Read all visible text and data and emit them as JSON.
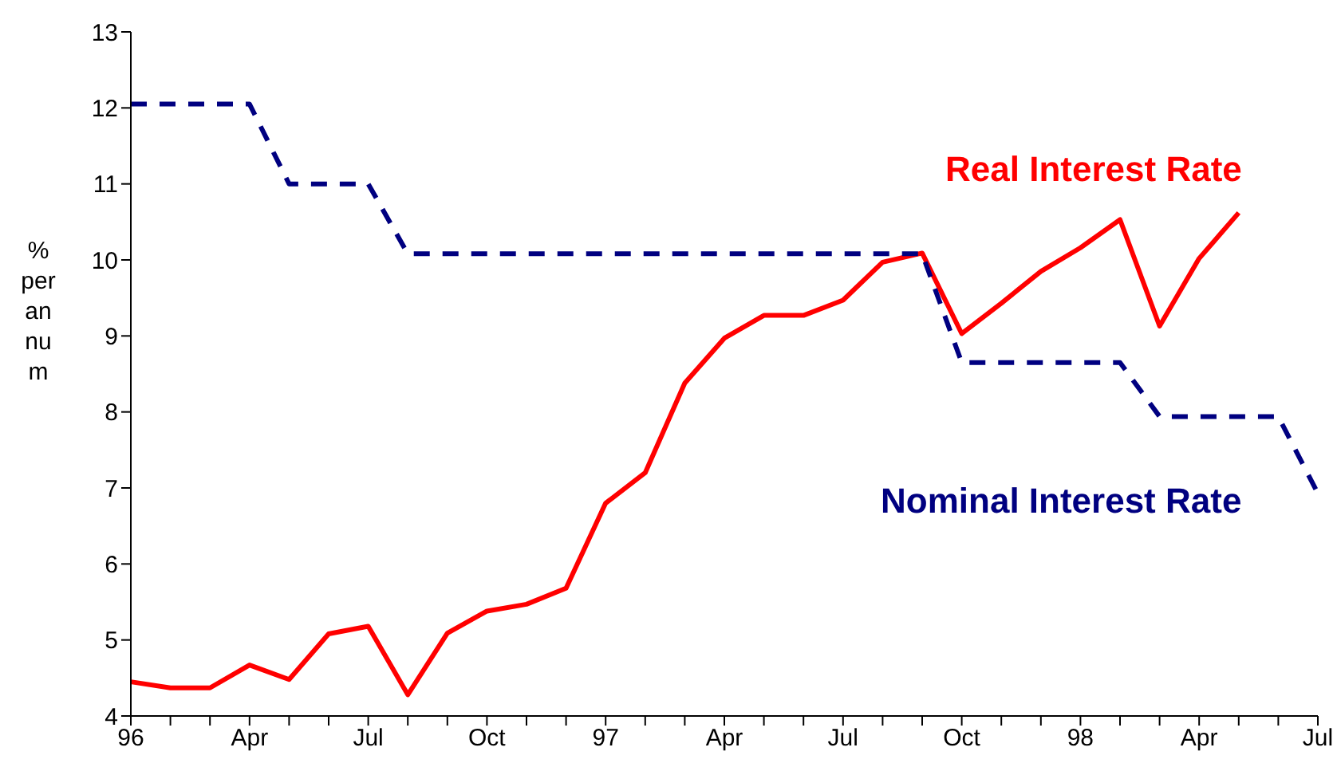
{
  "chart_data": {
    "type": "line",
    "categories": [
      "96",
      null,
      null,
      "Apr",
      null,
      null,
      "Jul",
      null,
      null,
      "Oct",
      null,
      null,
      "97",
      null,
      null,
      "Apr",
      null,
      null,
      "Jul",
      null,
      null,
      "Oct",
      null,
      null,
      "98",
      null,
      null,
      "Apr",
      null,
      null,
      "Jul"
    ],
    "series": [
      {
        "name": "Real Interest Rate",
        "color": "#ff0000",
        "line_style": "solid",
        "values": [
          4.45,
          4.37,
          4.37,
          4.67,
          4.48,
          5.08,
          5.18,
          4.28,
          5.09,
          5.38,
          5.47,
          5.68,
          6.8,
          7.2,
          8.38,
          8.97,
          9.27,
          9.27,
          9.47,
          9.97,
          10.09,
          9.03,
          9.43,
          9.85,
          10.16,
          10.53,
          9.13,
          10.02,
          10.62,
          null,
          null
        ]
      },
      {
        "name": "Nominal Interest Rate",
        "color": "#000080",
        "line_style": "dashed",
        "values": [
          12.05,
          12.05,
          12.05,
          12.05,
          11.0,
          11.0,
          11.0,
          10.08,
          10.08,
          10.08,
          10.08,
          10.08,
          10.08,
          10.08,
          10.08,
          10.08,
          10.08,
          10.08,
          10.08,
          10.08,
          10.08,
          8.65,
          8.65,
          8.65,
          8.65,
          8.65,
          7.94,
          7.94,
          7.94,
          7.94,
          6.93
        ]
      }
    ],
    "ylabel": "% per annum",
    "ylim": [
      4,
      13
    ],
    "yticks": [
      4,
      5,
      6,
      7,
      8,
      9,
      10,
      11,
      12,
      13
    ],
    "grid": false,
    "legend": false,
    "marker": "none"
  }
}
